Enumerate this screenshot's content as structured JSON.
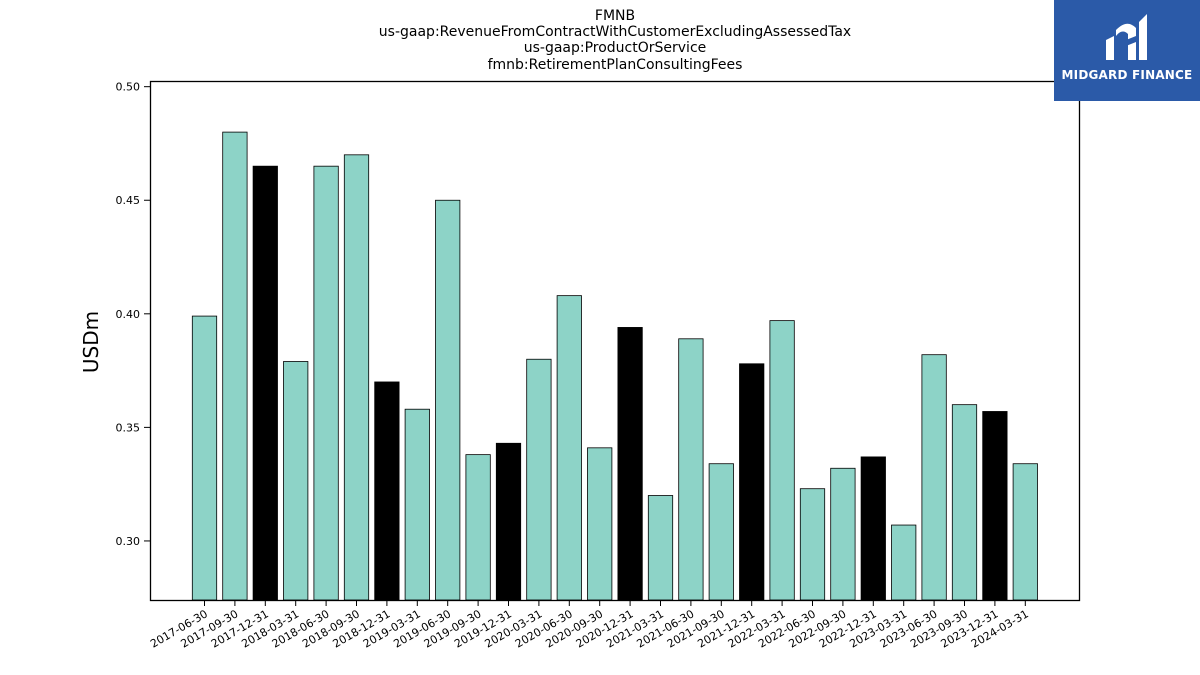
{
  "chart_data": {
    "type": "bar",
    "title_lines": [
      "FMNB",
      "us-gaap:RevenueFromContractWithCustomerExcludingAssessedTax",
      "us-gaap:ProductOrService",
      "fmnb:RetirementPlanConsultingFees"
    ],
    "xlabel": "",
    "ylabel": "USDm",
    "ylim": [
      0.274,
      0.5025
    ],
    "yticks": [
      "0.30",
      "0.35",
      "0.40",
      "0.45",
      "0.50"
    ],
    "grid": false,
    "categories": [
      "2017-06-30",
      "2017-09-30",
      "2017-12-31",
      "2018-03-31",
      "2018-06-30",
      "2018-09-30",
      "2018-12-31",
      "2019-03-31",
      "2019-06-30",
      "2019-09-30",
      "2019-12-31",
      "2020-03-31",
      "2020-06-30",
      "2020-09-30",
      "2020-12-31",
      "2021-03-31",
      "2021-06-30",
      "2021-09-30",
      "2021-12-31",
      "2022-03-31",
      "2022-06-30",
      "2022-09-30",
      "2022-12-31",
      "2023-03-31",
      "2023-06-30",
      "2023-09-30",
      "2023-12-31",
      "2024-03-31"
    ],
    "values": [
      0.399,
      0.48,
      0.465,
      0.379,
      0.465,
      0.47,
      0.37,
      0.358,
      0.45,
      0.338,
      0.343,
      0.38,
      0.408,
      0.341,
      0.394,
      0.32,
      0.389,
      0.334,
      0.378,
      0.397,
      0.323,
      0.332,
      0.337,
      0.307,
      0.382,
      0.36,
      0.357,
      0.334
    ],
    "colors": {
      "quarterly": "#8dd3c7",
      "year_end": "#000000",
      "edge": "#000000"
    }
  },
  "logo": {
    "text": "MIDGARD FINANCE",
    "background": "#2b5aa8",
    "foreground": "#ffffff"
  }
}
